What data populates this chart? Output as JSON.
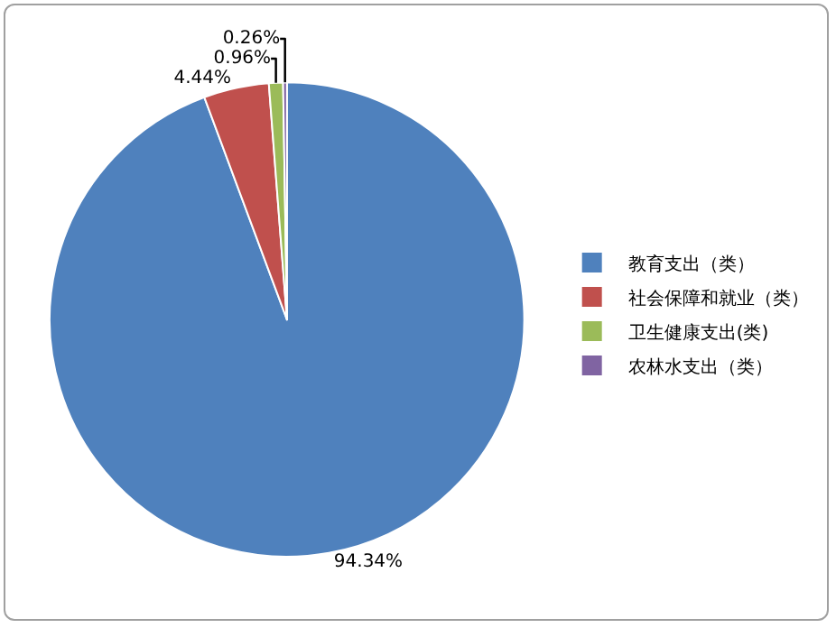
{
  "chart_data": {
    "type": "pie",
    "categories": [
      "教育支出（类）",
      "社会保障和就业（类）",
      "卫生健康支出(类)",
      "农林水支出（类）"
    ],
    "values": [
      94.34,
      4.44,
      0.96,
      0.26
    ],
    "colors": [
      "#4f81bd",
      "#c0504d",
      "#9bbb59",
      "#8064a2"
    ],
    "value_labels": [
      "94.34%",
      "4.44%",
      "0.96%",
      "0.26%"
    ],
    "legend": "right"
  }
}
